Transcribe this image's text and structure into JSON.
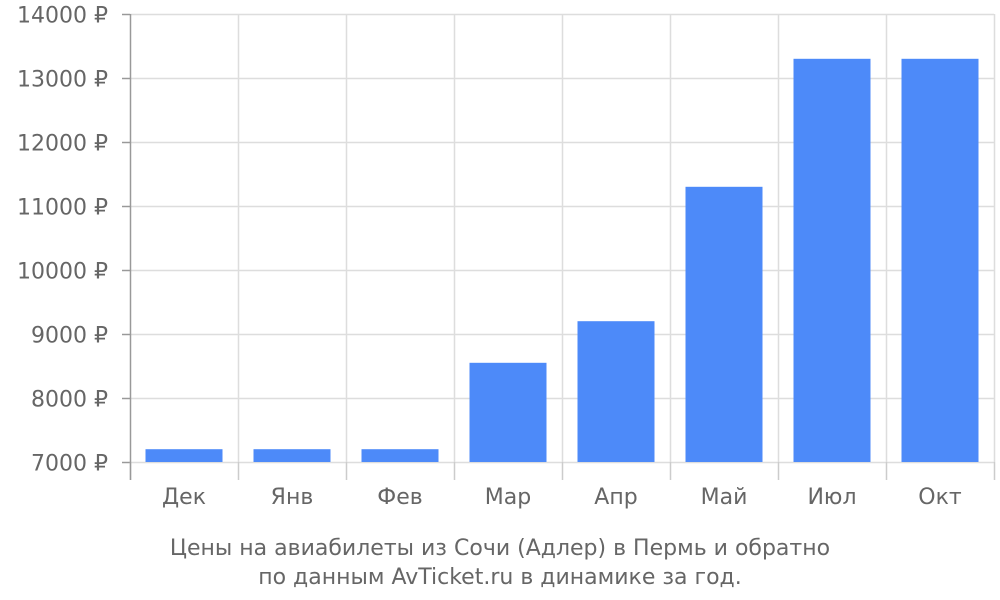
{
  "chart_data": {
    "type": "bar",
    "categories": [
      "Дек",
      "Янв",
      "Фев",
      "Мар",
      "Апр",
      "Май",
      "Июл",
      "Окт"
    ],
    "values": [
      7200,
      7200,
      7200,
      8550,
      9200,
      11300,
      13300,
      13300
    ],
    "ylim": [
      7000,
      14000
    ],
    "y_ticks": [
      7000,
      8000,
      9000,
      10000,
      11000,
      12000,
      13000,
      14000
    ],
    "y_tick_labels": [
      "7000 ₽",
      "8000 ₽",
      "9000 ₽",
      "10000 ₽",
      "11000 ₽",
      "12000 ₽",
      "13000 ₽",
      "14000 ₽"
    ],
    "currency": "₽",
    "title_line1": "Цены на авиабилеты из Сочи (Адлер) в Пермь и обратно",
    "title_line2": "по данным AvTicket.ru в динамике за год.",
    "xlabel": "",
    "ylabel": "",
    "grid": true,
    "bar_color": "#4d8af9",
    "grid_color": "#dddddd",
    "axis_color": "#999999",
    "text_color": "#666666"
  }
}
